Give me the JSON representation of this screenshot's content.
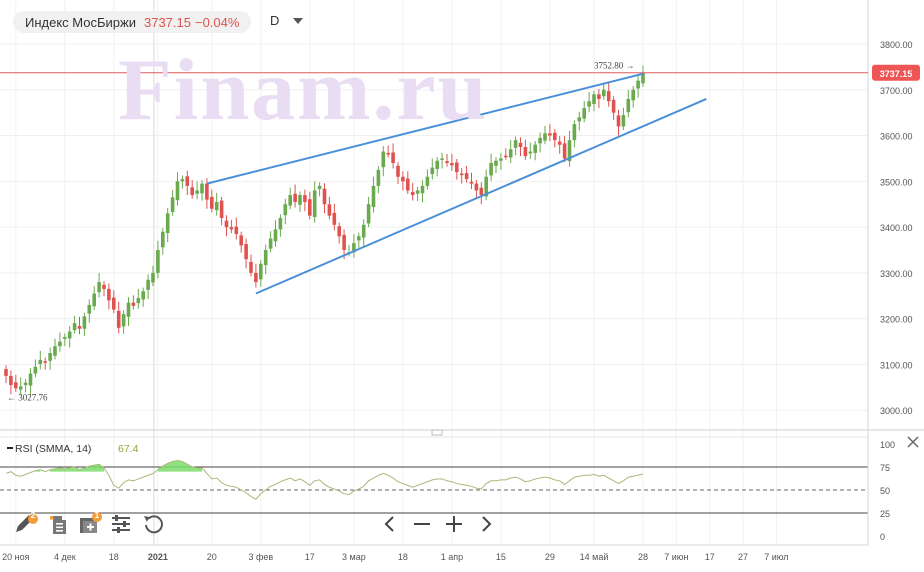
{
  "header": {
    "instrument": "Индекс МосБиржи",
    "last_price": "3737.15",
    "change": "−0.04%",
    "timeframe": "D"
  },
  "watermark": "Finam.ru",
  "price_axis": {
    "ticks": [
      "3800.00",
      "3700.00",
      "3600.00",
      "3500.00",
      "3400.00",
      "3300.00",
      "3200.00",
      "3100.00",
      "3000.00"
    ],
    "last_label": "3737.15"
  },
  "annotations": {
    "high_label": "3752.80 →",
    "low_label": "← 3027.76"
  },
  "rsi": {
    "title": "RSI (SMMA, 14)",
    "value": "67.4",
    "ticks": [
      "100",
      "75",
      "50",
      "25",
      "0"
    ]
  },
  "time_axis": {
    "labels": [
      "20 ноя",
      "4 дек",
      "18",
      "2021",
      "20",
      "3 фев",
      "17",
      "3 мар",
      "18",
      "1 апр",
      "15",
      "29",
      "14 май",
      "28",
      "7 июн",
      "17",
      "27",
      "7 июл"
    ]
  },
  "colors": {
    "up": "#6aaa4f",
    "down": "#e0524f",
    "trendline": "#4a90d9",
    "rsi_line": "#a9b97a",
    "rsi_fill": "#7ddc6a",
    "price_line": "#e05a5a",
    "watermark": "#e9ddf3"
  },
  "toolbar": {
    "pencil_badge": "2",
    "layers_badge": "1",
    "icons": [
      "pencil-icon",
      "document-icon",
      "add-layer-icon",
      "sliders-icon",
      "reset-icon"
    ],
    "nav": [
      "chevron-left-icon",
      "minus-icon",
      "plus-icon",
      "chevron-right-icon"
    ]
  },
  "chart_data": {
    "type": "candlestick",
    "title": "Индекс МосБиржи",
    "ylim": [
      2960,
      3830
    ],
    "dates": [
      "2020-11-18",
      "2020-11-19",
      "2020-11-20",
      "2020-11-23",
      "2020-11-24",
      "2020-11-25",
      "2020-11-26",
      "2020-11-27",
      "2020-11-30",
      "2020-12-01",
      "2020-12-02",
      "2020-12-03",
      "2020-12-04",
      "2020-12-07",
      "2020-12-08",
      "2020-12-09",
      "2020-12-10",
      "2020-12-11",
      "2020-12-14",
      "2020-12-15",
      "2020-12-16",
      "2020-12-17",
      "2020-12-18",
      "2020-12-21",
      "2020-12-22",
      "2020-12-23",
      "2020-12-24",
      "2020-12-25",
      "2020-12-28",
      "2020-12-29",
      "2020-12-30",
      "2021-01-04",
      "2021-01-05",
      "2021-01-06",
      "2021-01-08",
      "2021-01-11",
      "2021-01-12",
      "2021-01-13",
      "2021-01-14",
      "2021-01-15",
      "2021-01-18",
      "2021-01-19",
      "2021-01-20",
      "2021-01-21",
      "2021-01-22",
      "2021-01-25",
      "2021-01-26",
      "2021-01-27",
      "2021-01-28",
      "2021-01-29",
      "2021-02-01",
      "2021-02-02",
      "2021-02-03",
      "2021-02-04",
      "2021-02-05",
      "2021-02-08",
      "2021-02-09",
      "2021-02-10",
      "2021-02-11",
      "2021-02-12",
      "2021-02-15",
      "2021-02-16",
      "2021-02-17",
      "2021-02-18",
      "2021-02-19",
      "2021-02-22",
      "2021-02-24",
      "2021-02-25",
      "2021-02-26",
      "2021-03-01",
      "2021-03-02",
      "2021-03-03",
      "2021-03-04",
      "2021-03-05",
      "2021-03-09",
      "2021-03-10",
      "2021-03-11",
      "2021-03-12",
      "2021-03-15",
      "2021-03-16",
      "2021-03-17",
      "2021-03-18",
      "2021-03-19",
      "2021-03-22",
      "2021-03-23",
      "2021-03-24",
      "2021-03-25",
      "2021-03-26",
      "2021-03-29",
      "2021-03-30",
      "2021-03-31",
      "2021-04-01",
      "2021-04-02",
      "2021-04-05",
      "2021-04-06",
      "2021-04-07",
      "2021-04-08",
      "2021-04-09",
      "2021-04-12",
      "2021-04-13",
      "2021-04-14",
      "2021-04-15",
      "2021-04-16",
      "2021-04-19",
      "2021-04-20",
      "2021-04-21",
      "2021-04-22",
      "2021-04-23",
      "2021-04-26",
      "2021-04-27",
      "2021-04-28",
      "2021-04-29",
      "2021-04-30",
      "2021-05-04",
      "2021-05-05",
      "2021-05-06",
      "2021-05-07",
      "2021-05-11",
      "2021-05-12",
      "2021-05-13",
      "2021-05-14",
      "2021-05-17",
      "2021-05-18",
      "2021-05-19",
      "2021-05-20",
      "2021-05-21",
      "2021-05-24",
      "2021-05-25",
      "2021-05-26",
      "2021-05-27",
      "2021-05-28"
    ],
    "close": [
      3075,
      3055,
      3048,
      3052,
      3060,
      3080,
      3095,
      3110,
      3105,
      3125,
      3140,
      3150,
      3160,
      3172,
      3190,
      3178,
      3205,
      3230,
      3255,
      3280,
      3265,
      3240,
      3220,
      3180,
      3210,
      3235,
      3228,
      3245,
      3260,
      3285,
      3300,
      3350,
      3390,
      3430,
      3465,
      3500,
      3505,
      3490,
      3470,
      3480,
      3495,
      3460,
      3440,
      3455,
      3420,
      3400,
      3395,
      3385,
      3360,
      3330,
      3300,
      3280,
      3320,
      3350,
      3375,
      3395,
      3420,
      3450,
      3470,
      3455,
      3470,
      3455,
      3425,
      3480,
      3490,
      3450,
      3425,
      3405,
      3380,
      3350,
      3345,
      3365,
      3380,
      3405,
      3450,
      3490,
      3525,
      3565,
      3560,
      3540,
      3510,
      3500,
      3480,
      3470,
      3480,
      3490,
      3510,
      3530,
      3545,
      3550,
      3540,
      3535,
      3520,
      3515,
      3505,
      3495,
      3480,
      3470,
      3510,
      3540,
      3545,
      3550,
      3555,
      3570,
      3590,
      3575,
      3555,
      3565,
      3580,
      3595,
      3605,
      3600,
      3590,
      3580,
      3550,
      3590,
      3625,
      3640,
      3660,
      3675,
      3690,
      3680,
      3700,
      3675,
      3650,
      3620,
      3645,
      3680,
      3700,
      3720,
      3737.15
    ],
    "price_line": 3737.15,
    "max_label": 3752.8,
    "min_label": 3027.76,
    "trendlines": [
      {
        "from": [
          "2021-01-19",
          3495
        ],
        "to": [
          "2021-05-28",
          3735
        ]
      },
      {
        "from": [
          "2021-02-02",
          3255
        ],
        "to": [
          "2021-06-16",
          3680
        ]
      }
    ],
    "rsi": {
      "name": "RSI (SMMA, 14)",
      "last": 67.4,
      "levels": [
        25,
        50,
        75
      ],
      "ylim": [
        0,
        100
      ],
      "values": [
        68,
        70,
        66,
        65,
        67,
        69,
        71,
        72,
        70,
        72,
        73,
        74,
        73,
        74,
        75,
        72,
        74,
        76,
        77,
        78,
        74,
        66,
        55,
        52,
        58,
        61,
        60,
        62,
        64,
        66,
        68,
        72,
        76,
        79,
        81,
        82,
        81,
        78,
        75,
        74,
        74,
        68,
        62,
        63,
        58,
        55,
        54,
        53,
        50,
        47,
        43,
        40,
        46,
        50,
        54,
        56,
        59,
        61,
        63,
        60,
        62,
        59,
        55,
        60,
        61,
        56,
        53,
        51,
        49,
        46,
        45,
        49,
        51,
        54,
        60,
        63,
        66,
        68,
        66,
        63,
        59,
        57,
        55,
        53,
        55,
        57,
        59,
        61,
        62,
        62,
        60,
        59,
        57,
        56,
        55,
        54,
        52,
        51,
        57,
        60,
        60,
        61,
        61,
        63,
        64,
        62,
        59,
        60,
        62,
        63,
        64,
        63,
        61,
        60,
        56,
        60,
        64,
        65,
        66,
        66,
        67,
        65,
        66,
        63,
        60,
        57,
        60,
        64,
        65,
        66,
        67.4
      ]
    }
  }
}
